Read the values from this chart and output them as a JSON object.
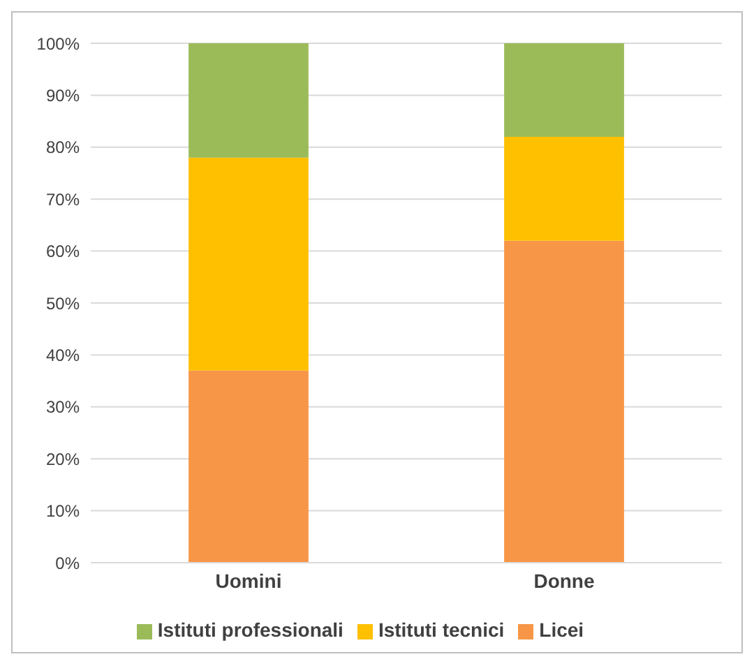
{
  "chart_data": {
    "type": "bar",
    "stacked": true,
    "categories": [
      "Uomini",
      "Donne"
    ],
    "series": [
      {
        "name": "Licei",
        "color": "#f79646",
        "values": [
          37,
          62
        ]
      },
      {
        "name": "Istituti tecnici",
        "color": "#ffc000",
        "values": [
          41,
          20
        ]
      },
      {
        "name": "Istituti professionali",
        "color": "#9bbb59",
        "values": [
          22,
          18
        ]
      }
    ],
    "ylim": [
      0,
      100
    ],
    "yticks": [
      {
        "value": 0,
        "label": "0%"
      },
      {
        "value": 10,
        "label": "10%"
      },
      {
        "value": 20,
        "label": "20%"
      },
      {
        "value": 30,
        "label": "30%"
      },
      {
        "value": 40,
        "label": "40%"
      },
      {
        "value": 50,
        "label": "50%"
      },
      {
        "value": 60,
        "label": "60%"
      },
      {
        "value": 70,
        "label": "70%"
      },
      {
        "value": 80,
        "label": "80%"
      },
      {
        "value": 90,
        "label": "90%"
      },
      {
        "value": 100,
        "label": "100%"
      }
    ],
    "grid": "y",
    "legend": "bottom"
  }
}
